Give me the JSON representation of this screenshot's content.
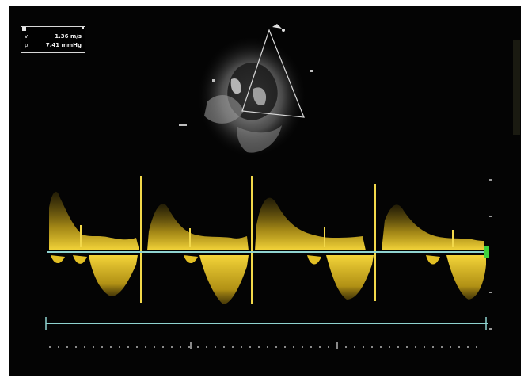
{
  "measurements": [
    {
      "symbol": "v",
      "value": "1.36 m/s"
    },
    {
      "symbol": "p",
      "value": "7.41 mmHg"
    }
  ],
  "colors": {
    "background": "#050505",
    "doppler": "#e6c21a",
    "baseline": "#8fd3d0",
    "scale_marker": "#3ed13e",
    "tissue": "#b9b9b9"
  },
  "beats": 4
}
